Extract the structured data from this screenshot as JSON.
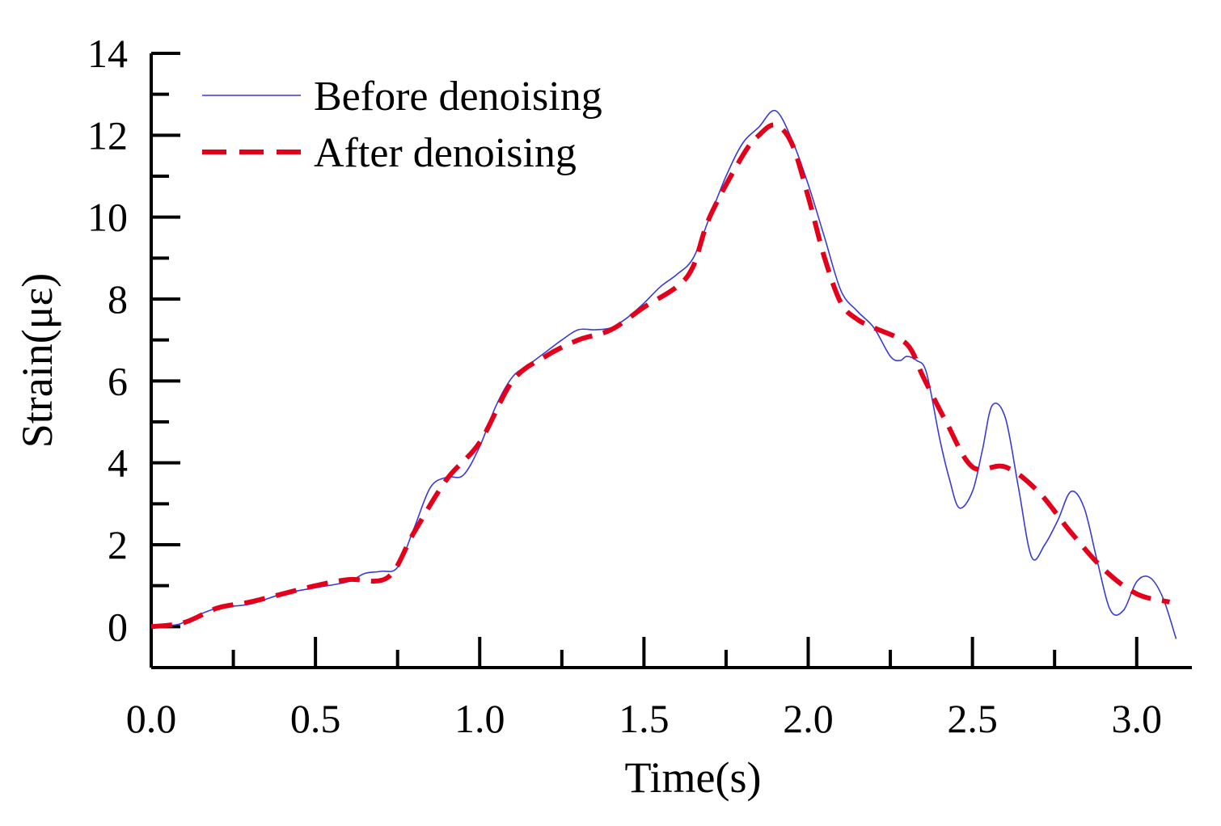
{
  "chart_data": {
    "type": "line",
    "title": "",
    "xlabel": "Time(s)",
    "ylabel": "Strain(με)",
    "xlim": [
      0.0,
      3.2
    ],
    "ylim": [
      -1.0,
      14.0
    ],
    "x_ticks": [
      0.0,
      0.5,
      1.0,
      1.5,
      2.0,
      2.5,
      3.0
    ],
    "x_tick_labels": [
      "0.0",
      "0.5",
      "1.0",
      "1.5",
      "2.0",
      "2.5",
      "3.0"
    ],
    "y_ticks": [
      0,
      2,
      4,
      6,
      8,
      10,
      12,
      14
    ],
    "y_tick_labels": [
      "0",
      "2",
      "4",
      "6",
      "8",
      "10",
      "12",
      "14"
    ],
    "x_minor_step": 0.25,
    "y_minor_step": 1,
    "grid": false,
    "legend_position": "top-left",
    "series": [
      {
        "name": "Before denoising",
        "color": "#3a3ad8",
        "style": "solid",
        "x": [
          0.0,
          0.08,
          0.12,
          0.2,
          0.3,
          0.4,
          0.5,
          0.6,
          0.65,
          0.7,
          0.75,
          0.8,
          0.85,
          0.9,
          0.95,
          1.0,
          1.05,
          1.1,
          1.15,
          1.2,
          1.25,
          1.3,
          1.35,
          1.4,
          1.45,
          1.5,
          1.55,
          1.6,
          1.65,
          1.7,
          1.75,
          1.8,
          1.85,
          1.9,
          1.95,
          2.0,
          2.05,
          2.1,
          2.15,
          2.2,
          2.25,
          2.28,
          2.3,
          2.33,
          2.36,
          2.4,
          2.43,
          2.46,
          2.5,
          2.53,
          2.56,
          2.6,
          2.64,
          2.68,
          2.72,
          2.76,
          2.8,
          2.84,
          2.88,
          2.92,
          2.96,
          3.0,
          3.04,
          3.08,
          3.12
        ],
        "y": [
          0.0,
          0.05,
          0.2,
          0.45,
          0.55,
          0.8,
          0.95,
          1.1,
          1.3,
          1.35,
          1.45,
          2.4,
          3.4,
          3.65,
          3.7,
          4.4,
          5.4,
          6.1,
          6.4,
          6.7,
          7.0,
          7.25,
          7.25,
          7.3,
          7.55,
          7.9,
          8.3,
          8.6,
          9.0,
          10.0,
          11.0,
          11.8,
          12.2,
          12.6,
          11.9,
          10.8,
          9.5,
          8.2,
          7.7,
          7.3,
          6.6,
          6.5,
          6.6,
          6.5,
          6.2,
          4.6,
          3.6,
          2.9,
          3.3,
          4.3,
          5.4,
          5.1,
          3.4,
          1.7,
          2.0,
          2.6,
          3.3,
          2.9,
          1.6,
          0.4,
          0.4,
          1.1,
          1.2,
          0.7,
          -0.3
        ]
      },
      {
        "name": "After denoising",
        "color": "#e4001b",
        "style": "dashed",
        "x": [
          0.0,
          0.1,
          0.2,
          0.3,
          0.4,
          0.5,
          0.6,
          0.72,
          0.8,
          0.9,
          1.0,
          1.1,
          1.2,
          1.3,
          1.4,
          1.5,
          1.6,
          1.65,
          1.7,
          1.8,
          1.85,
          1.9,
          1.95,
          2.0,
          2.05,
          2.1,
          2.15,
          2.2,
          2.3,
          2.35,
          2.42,
          2.5,
          2.6,
          2.7,
          2.8,
          2.9,
          3.0,
          3.1
        ],
        "y": [
          0.0,
          0.1,
          0.45,
          0.6,
          0.8,
          1.0,
          1.15,
          1.2,
          2.3,
          3.6,
          4.5,
          6.0,
          6.6,
          7.0,
          7.25,
          7.8,
          8.3,
          8.8,
          10.0,
          11.5,
          12.0,
          12.25,
          11.8,
          10.5,
          9.0,
          7.9,
          7.5,
          7.3,
          6.9,
          6.1,
          5.0,
          3.9,
          3.9,
          3.3,
          2.3,
          1.4,
          0.8,
          0.6
        ]
      }
    ]
  }
}
